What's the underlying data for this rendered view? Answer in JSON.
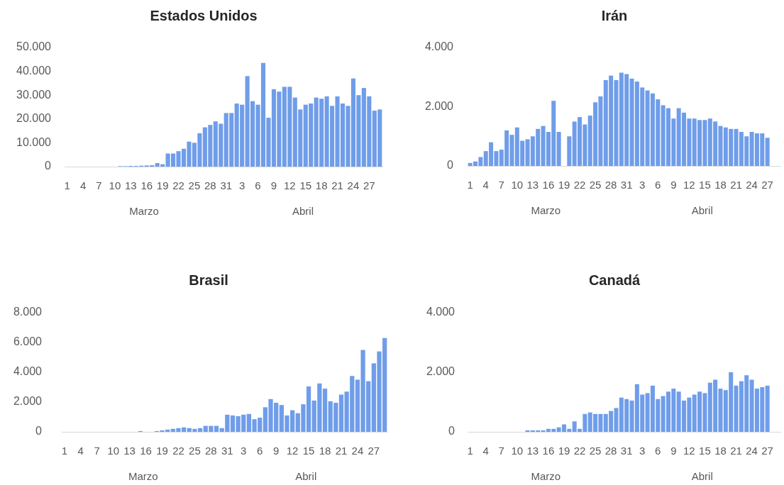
{
  "chart_data": [
    {
      "type": "bar",
      "title": "Estados Unidos",
      "categories": [
        "1",
        null,
        null,
        "4",
        null,
        null,
        "7",
        null,
        null,
        "10",
        null,
        null,
        "13",
        null,
        null,
        "16",
        null,
        null,
        "19",
        null,
        null,
        "22",
        null,
        null,
        "25",
        null,
        null,
        "28",
        null,
        null,
        "31",
        null,
        null,
        "3",
        null,
        null,
        "6",
        null,
        null,
        "9",
        null,
        null,
        "12",
        null,
        null,
        "15",
        null,
        null,
        "18",
        null,
        null,
        "21",
        null,
        null,
        "24",
        null,
        null,
        "27",
        null,
        null
      ],
      "values": [
        0,
        0,
        0,
        0,
        0,
        0,
        0,
        0,
        0,
        0,
        200,
        200,
        300,
        300,
        400,
        500,
        600,
        1500,
        1000,
        5500,
        5500,
        6500,
        7500,
        10500,
        10000,
        14000,
        16500,
        17500,
        19000,
        18000,
        22500,
        22500,
        26500,
        26000,
        38000,
        27500,
        26000,
        43500,
        20500,
        32500,
        31500,
        33500,
        33500,
        29000,
        24000,
        26000,
        26500,
        29000,
        28500,
        29500,
        25500,
        29500,
        26500,
        25500,
        37000,
        30000,
        33000,
        29500,
        23500,
        24000
      ],
      "color": "#6f9de9",
      "ylim": [
        0,
        50000
      ],
      "yticks": [
        {
          "value": 0,
          "label": "0"
        },
        {
          "value": 10000,
          "label": "10.000"
        },
        {
          "value": 20000,
          "label": "20.000"
        },
        {
          "value": 30000,
          "label": "30.000"
        },
        {
          "value": 40000,
          "label": "40.000"
        },
        {
          "value": 50000,
          "label": "50.000"
        }
      ],
      "annotations": [
        "Marzo",
        "Abril"
      ]
    },
    {
      "type": "bar",
      "title": "Irán",
      "categories": [
        "1",
        null,
        null,
        "4",
        null,
        null,
        "7",
        null,
        null,
        "10",
        null,
        null,
        "13",
        null,
        null,
        "16",
        null,
        null,
        "19",
        null,
        null,
        "22",
        null,
        null,
        "25",
        null,
        null,
        "28",
        null,
        null,
        "31",
        null,
        null,
        "3",
        null,
        null,
        "6",
        null,
        null,
        "9",
        null,
        null,
        "12",
        null,
        null,
        "15",
        null,
        null,
        "18",
        null,
        null,
        "21",
        null,
        null,
        "24",
        null,
        null,
        "27",
        null,
        null
      ],
      "values": [
        100,
        150,
        300,
        500,
        800,
        500,
        550,
        1200,
        1050,
        1300,
        850,
        900,
        1000,
        1250,
        1350,
        1150,
        2200,
        1150,
        null,
        1000,
        1500,
        1650,
        1400,
        1700,
        2150,
        2350,
        2900,
        3050,
        2900,
        3150,
        3100,
        2950,
        2850,
        2650,
        2550,
        2450,
        2250,
        2050,
        1950,
        1600,
        1950,
        1800,
        1600,
        1600,
        1550,
        1550,
        1600,
        1500,
        1350,
        1300,
        1250,
        1250,
        1150,
        1000,
        1150,
        1100,
        1100,
        950,
        null,
        null
      ],
      "color": "#6f9de9",
      "ylim": [
        0,
        4000
      ],
      "yticks": [
        {
          "value": 0,
          "label": "0"
        },
        {
          "value": 2000,
          "label": "2.000"
        },
        {
          "value": 4000,
          "label": "4.000"
        }
      ],
      "annotations": [
        "Marzo",
        "Abril"
      ]
    },
    {
      "type": "bar",
      "title": "Brasil",
      "categories": [
        "1",
        null,
        null,
        "4",
        null,
        null,
        "7",
        null,
        null,
        "10",
        null,
        null,
        "13",
        null,
        null,
        "16",
        null,
        null,
        "19",
        null,
        null,
        "22",
        null,
        null,
        "25",
        null,
        null,
        "28",
        null,
        null,
        "31",
        null,
        null,
        "3",
        null,
        null,
        "6",
        null,
        null,
        "9",
        null,
        null,
        "12",
        null,
        null,
        "15",
        null,
        null,
        "18",
        null,
        null,
        "21",
        null,
        null,
        "24",
        null,
        null,
        "27",
        null,
        null
      ],
      "values": [
        0,
        0,
        0,
        0,
        0,
        0,
        0,
        0,
        0,
        0,
        0,
        0,
        0,
        0,
        50,
        0,
        0,
        50,
        100,
        150,
        200,
        250,
        300,
        250,
        200,
        250,
        400,
        400,
        400,
        250,
        1150,
        1100,
        1050,
        1150,
        1200,
        850,
        950,
        1650,
        2200,
        1950,
        1800,
        1100,
        1450,
        1250,
        1850,
        3050,
        2100,
        3250,
        2900,
        2050,
        1950,
        2500,
        2700,
        3750,
        3500,
        5500,
        3400,
        4600,
        5400,
        6300
      ],
      "color": "#6f9de9",
      "ylim": [
        0,
        8000
      ],
      "yticks": [
        {
          "value": 0,
          "label": "0"
        },
        {
          "value": 2000,
          "label": "2.000"
        },
        {
          "value": 4000,
          "label": "4.000"
        },
        {
          "value": 6000,
          "label": "6.000"
        },
        {
          "value": 8000,
          "label": "8.000"
        }
      ],
      "annotations": [
        "Marzo",
        "Abril"
      ]
    },
    {
      "type": "bar",
      "title": "Canadá",
      "categories": [
        "1",
        null,
        null,
        "4",
        null,
        null,
        "7",
        null,
        null,
        "10",
        null,
        null,
        "13",
        null,
        null,
        "16",
        null,
        null,
        "19",
        null,
        null,
        "22",
        null,
        null,
        "25",
        null,
        null,
        "28",
        null,
        null,
        "31",
        null,
        null,
        "3",
        null,
        null,
        "6",
        null,
        null,
        "9",
        null,
        null,
        "12",
        null,
        null,
        "15",
        null,
        null,
        "18",
        null,
        null,
        "21",
        null,
        null,
        "24",
        null,
        null,
        "27",
        null,
        null
      ],
      "values": [
        0,
        0,
        0,
        0,
        0,
        0,
        0,
        0,
        0,
        0,
        0,
        50,
        50,
        50,
        50,
        100,
        100,
        150,
        250,
        100,
        350,
        100,
        600,
        650,
        600,
        600,
        600,
        700,
        800,
        1150,
        1100,
        1050,
        1600,
        1250,
        1300,
        1550,
        1100,
        1200,
        1350,
        1450,
        1350,
        1050,
        1150,
        1250,
        1350,
        1300,
        1650,
        1750,
        1450,
        1400,
        2000,
        1550,
        1700,
        1900,
        1750,
        1450,
        1500,
        1550,
        null,
        null
      ],
      "color": "#6f9de9",
      "ylim": [
        0,
        4000
      ],
      "yticks": [
        {
          "value": 0,
          "label": "0"
        },
        {
          "value": 2000,
          "label": "2.000"
        },
        {
          "value": 4000,
          "label": "4.000"
        }
      ],
      "annotations": [
        "Marzo",
        "Abril"
      ]
    }
  ]
}
